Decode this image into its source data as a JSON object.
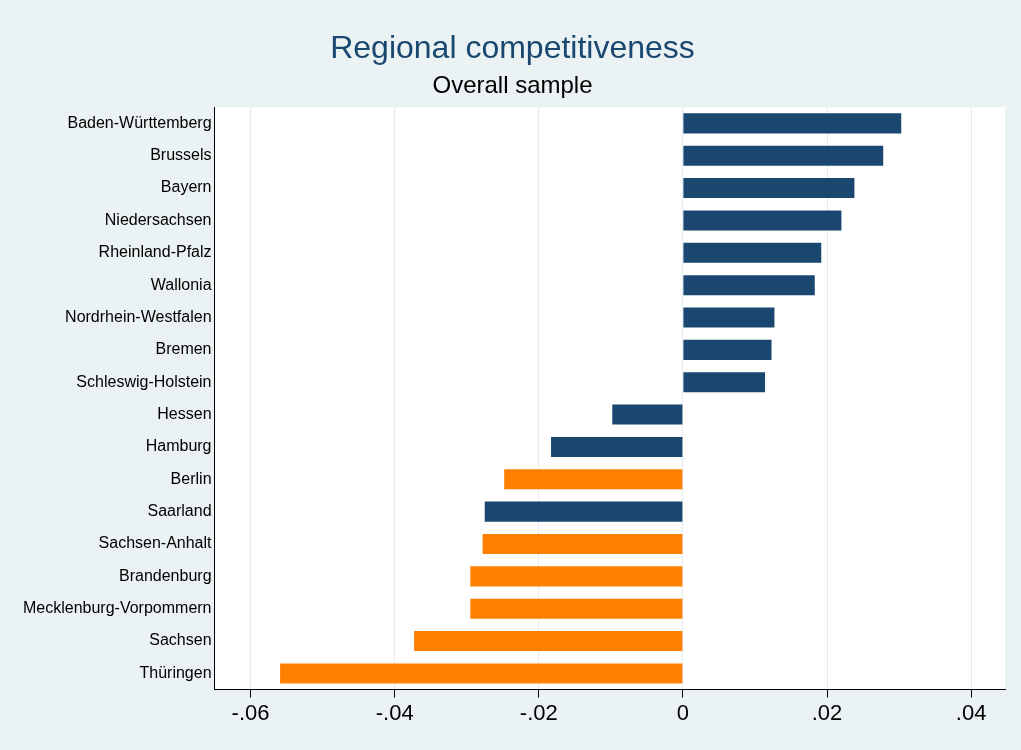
{
  "chart_data": {
    "type": "bar",
    "orientation": "horizontal",
    "title": "Regional competitiveness",
    "subtitle": "Overall sample",
    "categories": [
      "Baden-Württemberg",
      "Brussels",
      "Bayern",
      "Niedersachsen",
      "Rheinland-Pfalz",
      "Wallonia",
      "Nordrhein-Westfalen",
      "Bremen",
      "Schleswig-Holstein",
      "Hessen",
      "Hamburg",
      "Berlin",
      "Saarland",
      "Sachsen-Anhalt",
      "Brandenburg",
      "Mecklenburg-Vorpommern",
      "Sachsen",
      "Thüringen"
    ],
    "values": [
      0.0303,
      0.0278,
      0.0238,
      0.022,
      0.0192,
      0.0183,
      0.0127,
      0.0123,
      0.0114,
      -0.0098,
      -0.0183,
      -0.0248,
      -0.0275,
      -0.0278,
      -0.0295,
      -0.0295,
      -0.0373,
      -0.0559
    ],
    "colors": [
      "#1a476f",
      "#1a476f",
      "#1a476f",
      "#1a476f",
      "#1a476f",
      "#1a476f",
      "#1a476f",
      "#1a476f",
      "#1a476f",
      "#1a476f",
      "#1a476f",
      "#ff8000",
      "#1a476f",
      "#ff8000",
      "#ff8000",
      "#ff8000",
      "#ff8000",
      "#ff8000"
    ],
    "xlim": [
      -0.065,
      0.0447
    ],
    "xticks": [
      {
        "value": -0.06,
        "label": "-.06"
      },
      {
        "value": -0.04,
        "label": "-.04"
      },
      {
        "value": -0.02,
        "label": "-.02"
      },
      {
        "value": 0,
        "label": "0"
      },
      {
        "value": 0.02,
        "label": ".02"
      },
      {
        "value": 0.04,
        "label": ".04"
      }
    ],
    "grid": "x",
    "legend": false
  }
}
